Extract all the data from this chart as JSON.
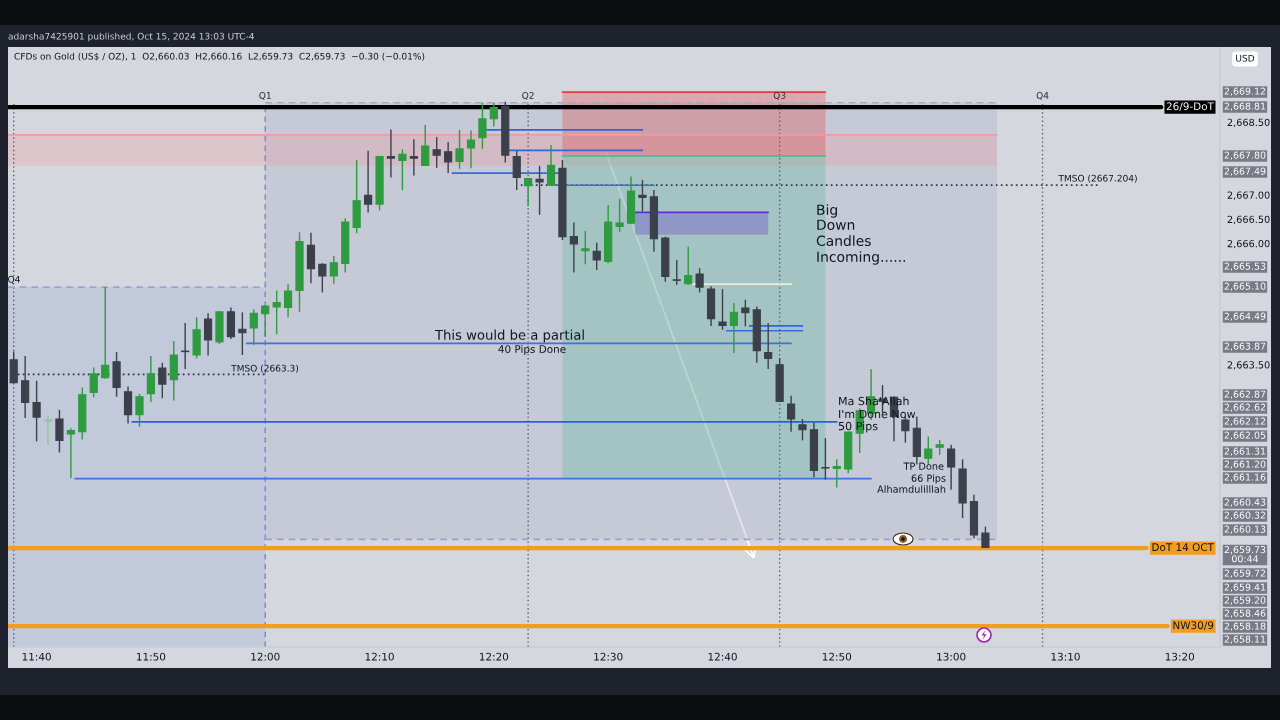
{
  "chart_data": {
    "type": "candlestick",
    "title": "CFDs on Gold (US$ / OZ), 1  O2,660.03  H2,660.16  L2,659.73  C2,659.73  −0.30 (−0.01%)",
    "subtitle": "adarsha7425901 published, Oct 15, 2024 13:03 UTC-4",
    "ylabel": "USD",
    "x": [
      11.6333,
      11.65,
      11.6667,
      11.6833,
      11.7,
      11.7167,
      11.7333,
      11.75,
      11.7667,
      11.7833,
      11.8,
      11.8167,
      11.8333,
      11.85,
      11.8667,
      11.8833,
      11.9,
      11.9167,
      11.9333,
      11.95,
      11.9667,
      11.9833,
      12,
      12.0167,
      12.0333,
      12.05,
      12.0667,
      12.0833,
      12.1,
      12.1167,
      12.1333,
      12.15,
      12.1667,
      12.1833,
      12.2,
      12.2167,
      12.2333,
      12.25,
      12.2667,
      12.2833,
      12.3,
      12.3167,
      12.3333,
      12.35,
      12.3667,
      12.3833,
      12.4,
      12.4167,
      12.4333,
      12.45,
      12.4667,
      12.4833,
      12.5,
      12.5167,
      12.5333,
      12.55,
      12.5667,
      12.5833,
      12.6,
      12.6167,
      12.6333,
      12.65,
      12.6667,
      12.6833,
      12.7,
      12.7167,
      12.7333,
      12.75,
      12.7667,
      12.7833,
      12.8,
      12.8167,
      12.8333,
      12.85,
      12.8667,
      12.8833,
      12.9,
      12.9167,
      12.9333,
      12.95,
      12.9667,
      12.9833,
      13,
      13.0167,
      13.0333,
      13.05
    ],
    "ohlc": [
      [
        2663.6,
        2663.77,
        2663.12,
        2663.13
      ],
      [
        2663.17,
        2663.68,
        2662.4,
        2662.72
      ],
      [
        2662.72,
        2663.17,
        2661.92,
        2662.42
      ],
      [
        2662.34,
        2662.47,
        2661.85,
        2662.36
      ],
      [
        2662.38,
        2662.57,
        2661.69,
        2661.94
      ],
      [
        2662.07,
        2662.19,
        2661.16,
        2662.14
      ],
      [
        2662.12,
        2663.03,
        2661.96,
        2662.88
      ],
      [
        2662.93,
        2663.44,
        2662.83,
        2663.31
      ],
      [
        2663.23,
        2665.1,
        2663.21,
        2663.49
      ],
      [
        2663.56,
        2663.76,
        2662.84,
        2663.03
      ],
      [
        2662.94,
        2663.05,
        2662.29,
        2662.47
      ],
      [
        2662.47,
        2662.9,
        2662.22,
        2662.84
      ],
      [
        2662.9,
        2663.68,
        2662.73,
        2663.31
      ],
      [
        2663.43,
        2663.54,
        2662.81,
        2663.1
      ],
      [
        2663.19,
        2663.99,
        2662.76,
        2663.7
      ],
      [
        2663.78,
        2664.36,
        2663.41,
        2663.77
      ],
      [
        2663.7,
        2664.48,
        2663.63,
        2664.22
      ],
      [
        2664.44,
        2664.56,
        2663.69,
        2664.01
      ],
      [
        2663.97,
        2664.59,
        2663.93,
        2664.59
      ],
      [
        2664.59,
        2664.68,
        2664.03,
        2664.08
      ],
      [
        2664.23,
        2664.58,
        2663.7,
        2664.16
      ],
      [
        2664.26,
        2664.64,
        2663.91,
        2664.56
      ],
      [
        2664.55,
        2664.73,
        2664.07,
        2664.71
      ],
      [
        2664.69,
        2665.03,
        2664.13,
        2664.78
      ],
      [
        2664.68,
        2665.16,
        2664.48,
        2665.02
      ],
      [
        2665.03,
        2666.23,
        2664.59,
        2666.04
      ],
      [
        2665.96,
        2666.22,
        2665.18,
        2665.48
      ],
      [
        2665.57,
        2665.59,
        2664.99,
        2665.33
      ],
      [
        2665.33,
        2665.74,
        2665.17,
        2665.6
      ],
      [
        2665.59,
        2666.52,
        2665.4,
        2666.44
      ],
      [
        2666.33,
        2667.72,
        2666.21,
        2666.88
      ],
      [
        2666.99,
        2667.91,
        2666.64,
        2666.81
      ],
      [
        2666.81,
        2667.8,
        2666.68,
        2667.79
      ],
      [
        2667.79,
        2668.35,
        2667.36,
        2667.76
      ],
      [
        2667.71,
        2667.94,
        2667.1,
        2667.84
      ],
      [
        2667.79,
        2668.15,
        2667.4,
        2667.76
      ],
      [
        2667.61,
        2668.44,
        2667.6,
        2668.01
      ],
      [
        2667.93,
        2668.19,
        2667.56,
        2667.82
      ],
      [
        2667.89,
        2668.09,
        2667.45,
        2667.68
      ],
      [
        2667.69,
        2668.34,
        2667.54,
        2667.95
      ],
      [
        2667.97,
        2668.33,
        2667.55,
        2668.13
      ],
      [
        2668.18,
        2668.9,
        2667.95,
        2668.57
      ],
      [
        2668.57,
        2668.9,
        2668.41,
        2668.8
      ],
      [
        2668.82,
        2668.92,
        2667.67,
        2667.82
      ],
      [
        2667.79,
        2667.91,
        2667.1,
        2667.36
      ],
      [
        2667.19,
        2667.34,
        2666.77,
        2667.34
      ],
      [
        2667.32,
        2667.6,
        2666.59,
        2667.27
      ],
      [
        2667.2,
        2668.03,
        2667.19,
        2667.61
      ],
      [
        2667.55,
        2667.72,
        2666.07,
        2666.14
      ],
      [
        2666.14,
        2666.43,
        2665.4,
        2665.99
      ],
      [
        2665.85,
        2666.26,
        2665.57,
        2665.89
      ],
      [
        2665.84,
        2666.02,
        2665.45,
        2665.66
      ],
      [
        2665.63,
        2666.79,
        2665.59,
        2666.44
      ],
      [
        2666.35,
        2666.92,
        2666.24,
        2666.42
      ],
      [
        2666.42,
        2667.38,
        2666.4,
        2667.08
      ],
      [
        2666.99,
        2667.31,
        2666.66,
        2666.95
      ],
      [
        2666.96,
        2667.1,
        2665.83,
        2666.1
      ],
      [
        2666.11,
        2666.14,
        2665.21,
        2665.32
      ],
      [
        2665.25,
        2665.66,
        2665.15,
        2665.24
      ],
      [
        2665.17,
        2665.93,
        2665.15,
        2665.34
      ],
      [
        2665.37,
        2665.49,
        2664.99,
        2665.1
      ],
      [
        2665.06,
        2665.12,
        2664.3,
        2664.45
      ],
      [
        2664.38,
        2665.06,
        2664.22,
        2664.31
      ],
      [
        2664.31,
        2664.77,
        2663.74,
        2664.58
      ],
      [
        2664.67,
        2664.84,
        2664.29,
        2664.57
      ],
      [
        2664.63,
        2664.7,
        2663.54,
        2663.79
      ],
      [
        2663.75,
        2664.36,
        2663.41,
        2663.63
      ],
      [
        2663.5,
        2663.63,
        2662.73,
        2662.74
      ],
      [
        2662.69,
        2662.86,
        2662.12,
        2662.38
      ],
      [
        2662.26,
        2662.38,
        2661.94,
        2662.16
      ],
      [
        2662.16,
        2662.31,
        2661.18,
        2661.32
      ],
      [
        2661.38,
        2661.99,
        2661.13,
        2661.37
      ],
      [
        2661.36,
        2661.55,
        2660.97,
        2661.4
      ],
      [
        2661.35,
        2662.12,
        2661.26,
        2662.11
      ],
      [
        2662.09,
        2662.6,
        2661.68,
        2662.55
      ],
      [
        2662.5,
        2663.41,
        2662.36,
        2662.84
      ],
      [
        2662.79,
        2663.08,
        2662.51,
        2662.74
      ],
      [
        2662.83,
        2662.84,
        2661.92,
        2662.43
      ],
      [
        2662.36,
        2662.43,
        2661.89,
        2662.14
      ],
      [
        2662.19,
        2662.43,
        2661.44,
        2661.61
      ],
      [
        2661.57,
        2662.02,
        2661.44,
        2661.76
      ],
      [
        2661.8,
        2661.95,
        2661.64,
        2661.85
      ],
      [
        2661.76,
        2661.85,
        2660.92,
        2661.39
      ],
      [
        2661.35,
        2661.55,
        2660.34,
        2660.65
      ],
      [
        2660.68,
        2660.82,
        2659.92,
        2659.99
      ],
      [
        2660.03,
        2660.16,
        2659.73,
        2659.73
      ]
    ],
    "colors": [
      "#3b404b",
      "#3b404b",
      "#3b404b",
      "#8fc59a",
      "#3b404b",
      "#2e9b3f",
      "#2e9b3f",
      "#2e9b3f",
      "#2e9b3f",
      "#3b404b",
      "#3b404b",
      "#2e9b3f",
      "#2e9b3f",
      "#3b404b",
      "#2e9b3f",
      "#3b404b",
      "#2e9b3f",
      "#3b404b",
      "#2e9b3f",
      "#3b404b",
      "#3b404b",
      "#2e9b3f",
      "#2e9b3f",
      "#2e9b3f",
      "#2e9b3f",
      "#2e9b3f",
      "#3b404b",
      "#3b404b",
      "#2e9b3f",
      "#2e9b3f",
      "#2e9b3f",
      "#3b404b",
      "#2e9b3f",
      "#3b404b",
      "#2e9b3f",
      "#3b404b",
      "#2e9b3f",
      "#3b404b",
      "#3b404b",
      "#2e9b3f",
      "#2e9b3f",
      "#2e9b3f",
      "#2e9b3f",
      "#3b404b",
      "#3b404b",
      "#2e9b3f",
      "#3b404b",
      "#2e9b3f",
      "#3b404b",
      "#3b404b",
      "#2e9b3f",
      "#3b404b",
      "#2e9b3f",
      "#2e9b3f",
      "#2e9b3f",
      "#3b404b",
      "#3b404b",
      "#3b404b",
      "#3b404b",
      "#2e9b3f",
      "#3b404b",
      "#3b404b",
      "#3b404b",
      "#2e9b3f",
      "#3b404b",
      "#3b404b",
      "#3b404b",
      "#3b404b",
      "#3b404b",
      "#3b404b",
      "#3b404b",
      "#3b404b",
      "#2e9b3f",
      "#2e9b3f",
      "#2e9b3f",
      "#2e9b3f",
      "#3b404b",
      "#3b404b",
      "#3b404b",
      "#3b404b",
      "#2e9b3f",
      "#2e9b3f",
      "#3b404b",
      "#3b404b",
      "#3b404b",
      "#3b404b"
    ],
    "xlim": [
      11.625,
      13.392
    ],
    "ylim": [
      2657.68,
      2670.05
    ],
    "xticks": [
      {
        "value": 11.6667,
        "label": "11:40"
      },
      {
        "value": 11.8333,
        "label": "11:50"
      },
      {
        "value": 12,
        "label": "12:00"
      },
      {
        "value": 12.1667,
        "label": "12:10"
      },
      {
        "value": 12.3333,
        "label": "12:20"
      },
      {
        "value": 12.5,
        "label": "12:30"
      },
      {
        "value": 12.6667,
        "label": "12:40"
      },
      {
        "value": 12.8333,
        "label": "12:50"
      },
      {
        "value": 13,
        "label": "13:00"
      },
      {
        "value": 13.1667,
        "label": "13:10"
      },
      {
        "value": 13.3333,
        "label": "13:20"
      }
    ],
    "yticks": [
      {
        "value": 2668.5,
        "label": "2,668.50"
      },
      {
        "value": 2667,
        "label": "2,667.00"
      },
      {
        "value": 2666.5,
        "label": "2,666.50"
      },
      {
        "value": 2666,
        "label": "2,666.00"
      },
      {
        "value": 2663.5,
        "label": "2,663.50"
      }
    ],
    "series": [
      {
        "type": "line",
        "x": [
          11.625,
          12
        ],
        "values": [
          2665.1,
          2665.1
        ],
        "lower": [
          2657.7,
          2657.7
        ],
        "upper": [
          2665.1,
          2665.1
        ],
        "color": "#95a8d1",
        "line_style": "dashed"
      },
      {
        "type": "line",
        "x": [
          12,
          13.0667
        ],
        "values": [
          2668.9,
          2668.9
        ],
        "lower": [
          2659.9,
          2659.9
        ],
        "upper": [
          2668.9,
          2668.9
        ],
        "color": "#a7a9c4",
        "line_style": "dashed"
      },
      {
        "type": "line",
        "x": [
          12,
          13.0667
        ],
        "values": [
          2659.9,
          2659.9
        ],
        "color": "#9aa0d4",
        "line_style": "dashed"
      },
      {
        "type": "line",
        "x": [
          11.625,
          13.0667
        ],
        "values": [
          2668.24,
          2668.24
        ],
        "lower": [
          2667.6,
          2667.6
        ],
        "upper": [
          2668.24,
          2668.24
        ],
        "color": "#ef9b9f"
      },
      {
        "type": "line",
        "x": [
          12.4333,
          12.8167
        ],
        "values": [
          2669.12,
          2669.12
        ],
        "lower": [
          2667.8,
          2667.8
        ],
        "upper": [
          2669.12,
          2669.12
        ],
        "color": "#e13e3e"
      },
      {
        "type": "line",
        "x": [
          12.4333,
          12.8167
        ],
        "values": [
          2667.8,
          2667.8
        ],
        "lower": [
          2661.16,
          2661.16
        ],
        "upper": [
          2667.8,
          2667.8
        ],
        "color": "#53bb96"
      },
      {
        "type": "line",
        "x": [
          12.5393,
          12.7333
        ],
        "values": [
          2666.64,
          2666.64
        ],
        "lower": [
          2666.18,
          2666.18
        ],
        "upper": [
          2666.64,
          2666.64
        ],
        "color": "#5f2ed2"
      },
      {
        "type": "line",
        "x": [
          11.6393,
          12
        ],
        "values": [
          2663.3,
          2663.3
        ],
        "color": "#2a2e39",
        "line_style": "dotted"
      },
      {
        "type": "line",
        "x": [
          12.3727,
          13.2167
        ],
        "values": [
          2667.204,
          2667.204
        ],
        "color": "#30343f",
        "line_style": "dotted"
      },
      {
        "type": "line",
        "x": [
          12.3225,
          12.55
        ],
        "values": [
          2668.34,
          2668.34
        ],
        "color": "#2f63e0"
      },
      {
        "type": "line",
        "x": [
          12.356,
          12.55
        ],
        "values": [
          2667.92,
          2667.92
        ],
        "color": "#3366dd"
      },
      {
        "type": "line",
        "x": [
          12.2727,
          12.4275
        ],
        "values": [
          2667.45,
          2667.45
        ],
        "color": "#3769da"
      },
      {
        "type": "line",
        "x": [
          12.4225,
          12.5667
        ],
        "values": [
          2667.2,
          2667.2
        ],
        "color": "#3b6cd7"
      },
      {
        "type": "line",
        "x": [
          11.9727,
          12.7667
        ],
        "values": [
          2663.94,
          2663.94
        ],
        "color": "#3f6fe4"
      },
      {
        "type": "line",
        "x": [
          11.806,
          12.8333
        ],
        "values": [
          2662.32,
          2662.32
        ],
        "color": "#2a5fe3"
      },
      {
        "type": "line",
        "x": [
          11.7227,
          12.8833
        ],
        "values": [
          2661.15,
          2661.15
        ],
        "color": "#4272dd"
      },
      {
        "type": "line",
        "x": [
          12.706,
          12.7833
        ],
        "values": [
          2664.3,
          2664.3
        ],
        "color": "#3464e6"
      },
      {
        "type": "line",
        "x": [
          12.6727,
          12.7833
        ],
        "values": [
          2664.2,
          2664.2
        ],
        "color": "#386ae3"
      },
      {
        "type": "line",
        "x": [
          12.6227,
          12.7667
        ],
        "values": [
          2665.16,
          2665.16
        ],
        "color": "#eeeed8"
      }
    ],
    "ref_lines": [
      {
        "axis": "y",
        "value": 2668.81,
        "label": "26/9-DoT",
        "color": "#000000"
      },
      {
        "axis": "y",
        "value": 2659.72,
        "label": "DoT 14 OCT",
        "color": "#f29d1f"
      },
      {
        "axis": "y",
        "value": 2658.11,
        "label": "NW30/9",
        "color": "#f29d1f"
      },
      {
        "axis": "x",
        "value": 11.6333,
        "label": null,
        "color": "#5d606b",
        "line_style": "dotted"
      },
      {
        "axis": "x",
        "value": 12,
        "label": "Q1",
        "color": "#7b86cf",
        "line_style": "dashed"
      },
      {
        "axis": "x",
        "value": 12.3833,
        "label": "Q2",
        "color": "#5d606b",
        "line_style": "dotted"
      },
      {
        "axis": "x",
        "value": 12.75,
        "label": "Q3",
        "color": "#5d606b",
        "line_style": "dotted"
      },
      {
        "axis": "x",
        "value": 13.1333,
        "label": "Q4",
        "color": "#5d606b",
        "line_style": "dotted"
      }
    ],
    "annotations": [
      "Q4",
      "TMSO (2663.3)",
      "TMSO (2667.204)",
      "This would be a partial",
      "40 Pips Done",
      "Big",
      "Down",
      "Candles",
      "Incoming......",
      "Ma Sha'Allah",
      "I'm Done Now",
      "50 Pips",
      "TP Done",
      "66 Pips",
      "Alhamdulilllah",
      "2,669.12",
      "2,668.81",
      "2,667.80",
      "2,667.49",
      "2,665.53",
      "2,665.10",
      "2,664.49",
      "2,663.87",
      "2,662.87",
      "2,662.62",
      "2,662.12",
      "2,662.05",
      "2,661.31",
      "2,661.20",
      "2,661.16",
      "2,660.43",
      "2,660.32",
      "2,660.13",
      "2,659.73\n00:44",
      "2,659.72",
      "2,659.41",
      "2,659.20",
      "2,658.46",
      "2,658.18",
      "2,658.11"
    ]
  }
}
